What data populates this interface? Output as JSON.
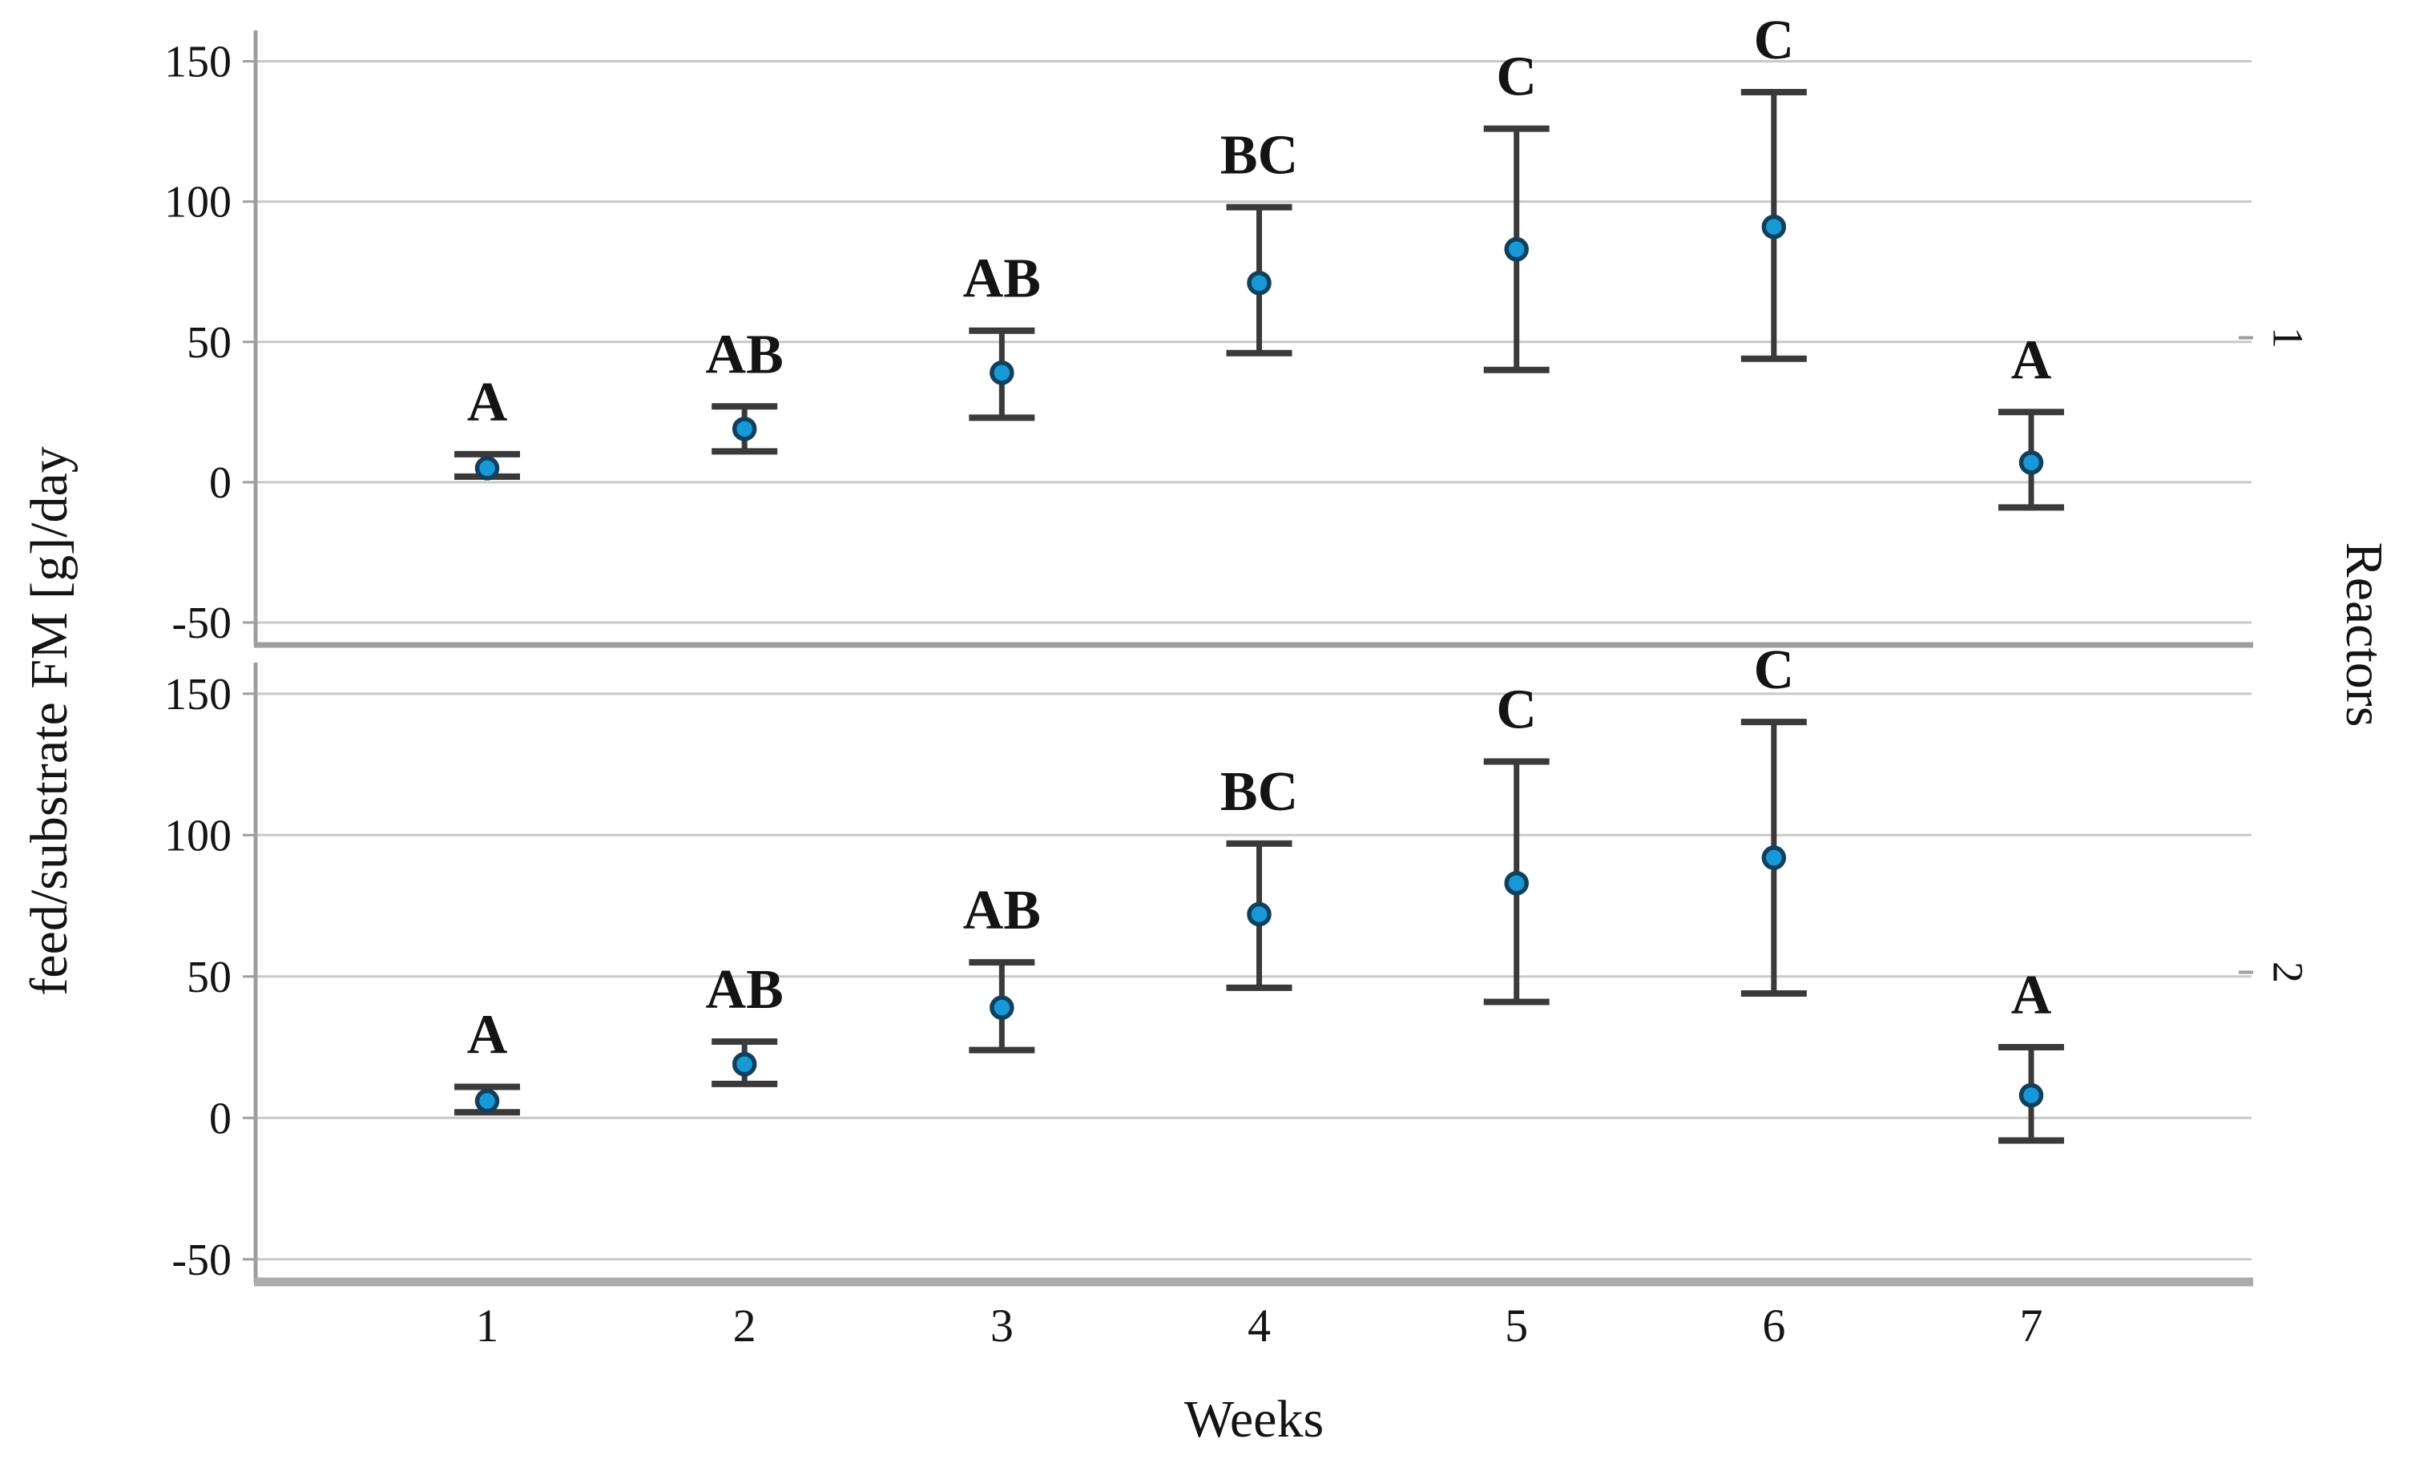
{
  "chart_data": {
    "type": "errorbar",
    "title": "",
    "xlabel": "Weeks",
    "ylabel": "feed/substrate FM [g]/day",
    "panel_axis_label": "Reactors",
    "panel_label_position": "right",
    "categories": [
      "1",
      "2",
      "3",
      "4",
      "5",
      "6",
      "7"
    ],
    "yticks": [
      150,
      100,
      50,
      0,
      -50
    ],
    "ytick_labels": [
      "150",
      "100",
      "50",
      "0",
      "-50"
    ],
    "ylim": [
      -58,
      161
    ],
    "grid": true,
    "legend": false,
    "colors": {
      "marker_fill": "#1799d8",
      "marker_edge": "#12405c",
      "errorbar": "#3a3a3a",
      "gridline": "#c9c9c9",
      "axis": "#9e9e9e",
      "bottom_border": "#ababab",
      "text": "#141414"
    },
    "panels": [
      {
        "label": "1",
        "points": [
          {
            "week": "1",
            "mean": 5,
            "lo": 2,
            "hi": 10,
            "letter": "A"
          },
          {
            "week": "2",
            "mean": 19,
            "lo": 11,
            "hi": 27,
            "letter": "AB"
          },
          {
            "week": "3",
            "mean": 39,
            "lo": 23,
            "hi": 54,
            "letter": "AB"
          },
          {
            "week": "4",
            "mean": 71,
            "lo": 46,
            "hi": 98,
            "letter": "BC"
          },
          {
            "week": "5",
            "mean": 83,
            "lo": 40,
            "hi": 126,
            "letter": "C"
          },
          {
            "week": "6",
            "mean": 91,
            "lo": 44,
            "hi": 139,
            "letter": "C"
          },
          {
            "week": "7",
            "mean": 7,
            "lo": -9,
            "hi": 25,
            "letter": "A"
          }
        ]
      },
      {
        "label": "2",
        "points": [
          {
            "week": "1",
            "mean": 6,
            "lo": 2,
            "hi": 11,
            "letter": "A"
          },
          {
            "week": "2",
            "mean": 19,
            "lo": 12,
            "hi": 27,
            "letter": "AB"
          },
          {
            "week": "3",
            "mean": 39,
            "lo": 24,
            "hi": 55,
            "letter": "AB"
          },
          {
            "week": "4",
            "mean": 72,
            "lo": 46,
            "hi": 97,
            "letter": "BC"
          },
          {
            "week": "5",
            "mean": 83,
            "lo": 41,
            "hi": 126,
            "letter": "C"
          },
          {
            "week": "6",
            "mean": 92,
            "lo": 44,
            "hi": 140,
            "letter": "C"
          },
          {
            "week": "7",
            "mean": 8,
            "lo": -8,
            "hi": 25,
            "letter": "A"
          }
        ]
      }
    ]
  }
}
